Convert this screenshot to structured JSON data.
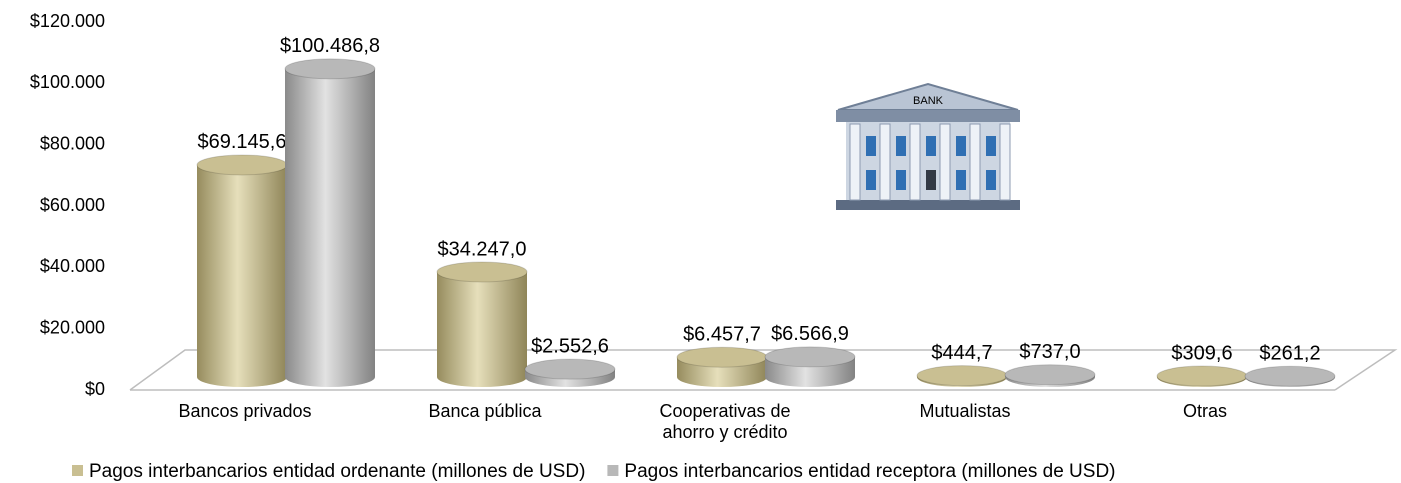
{
  "chart_data": {
    "type": "cylinder-bar",
    "categories": [
      "Bancos privados",
      "Banca pública",
      "Cooperativas de\nahorro y crédito",
      "Mutualistas",
      "Otras"
    ],
    "series": [
      {
        "name": "Pagos interbancarios entidad ordenante (millones de USD)",
        "color": "#c9bf92",
        "values": [
          69145.6,
          34247.0,
          6457.7,
          444.7,
          309.6
        ],
        "value_labels": [
          "$69.145,6",
          "$34.247,0",
          "$6.457,7",
          "$444,7",
          "$309,6"
        ]
      },
      {
        "name": "Pagos interbancarios entidad receptora (millones de USD)",
        "color": "#b8b8b8",
        "values": [
          100486.8,
          2552.6,
          6566.9,
          737.0,
          261.2
        ],
        "value_labels": [
          "$100.486,8",
          "$2.552,6",
          "$6.566,9",
          "$737,0",
          "$261,2"
        ]
      }
    ],
    "ylim": [
      0,
      120000
    ],
    "yticks": [
      {
        "value": 0,
        "label": "$0"
      },
      {
        "value": 20000,
        "label": "$20.000"
      },
      {
        "value": 40000,
        "label": "$40.000"
      },
      {
        "value": 60000,
        "label": "$60.000"
      },
      {
        "value": 80000,
        "label": "$80.000"
      },
      {
        "value": 100000,
        "label": "$100.000"
      },
      {
        "value": 120000,
        "label": "$120.000"
      }
    ],
    "legend": "bottom",
    "icon_text": "BANK"
  }
}
